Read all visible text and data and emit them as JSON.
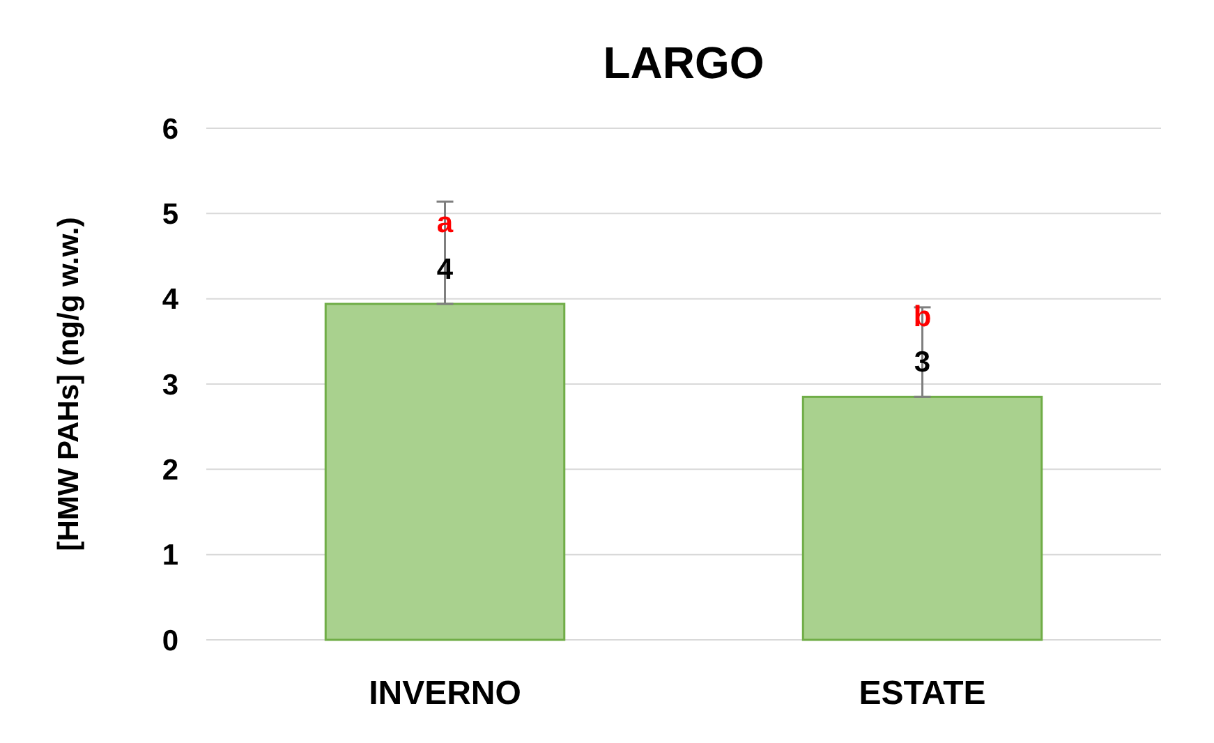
{
  "chart_data": {
    "type": "bar",
    "title": "LARGO",
    "ylabel": "[HMW PAHs] (ng/g w.w.)",
    "categories": [
      "INVERNO",
      "ESTATE"
    ],
    "values": [
      3.94,
      2.85
    ],
    "errors": [
      [
        3.94,
        5.14
      ],
      [
        2.85,
        3.9
      ]
    ],
    "value_labels": [
      "4",
      "3"
    ],
    "color": "#a9d18e",
    "ylim": [
      0,
      6
    ],
    "yticks": [
      0,
      1,
      2,
      3,
      4,
      5,
      6
    ],
    "grid": "y",
    "annotations": [
      {
        "text": "a",
        "x": "INVERNO",
        "y": 4.9
      },
      {
        "text": "b",
        "x": "ESTATE",
        "y": 3.8
      }
    ]
  }
}
